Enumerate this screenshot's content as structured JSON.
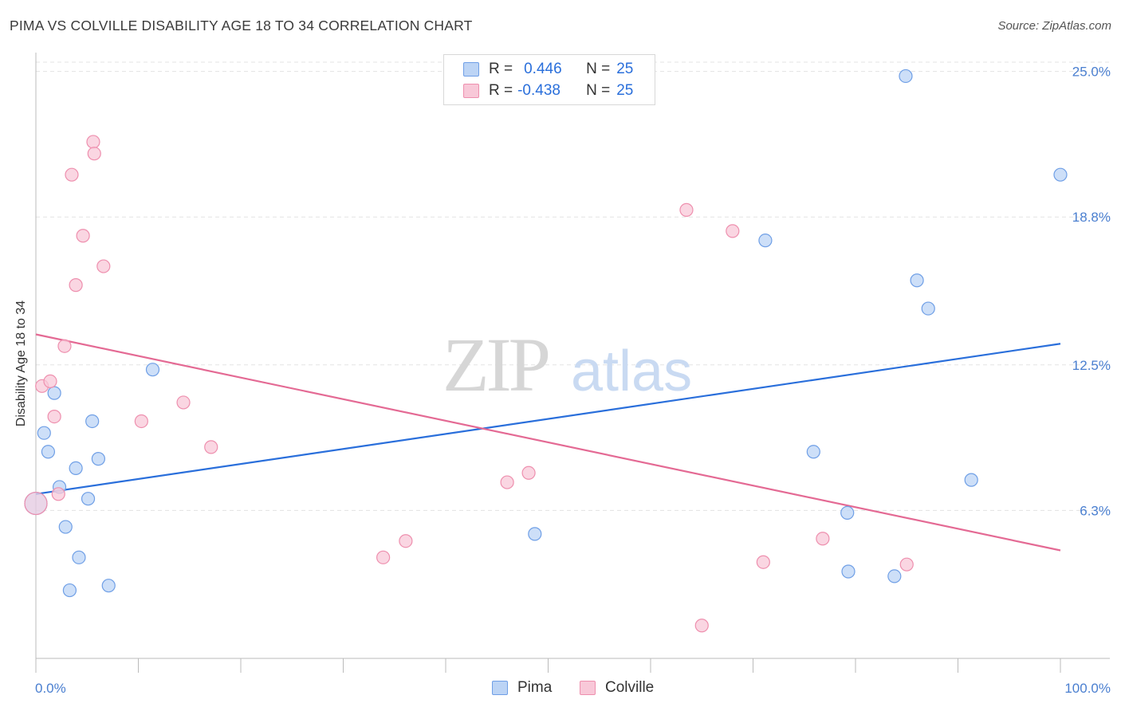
{
  "title": "PIMA VS COLVILLE DISABILITY AGE 18 TO 34 CORRELATION CHART",
  "source": "Source: ZipAtlas.com",
  "watermark": {
    "zip": "ZIP",
    "atlas": "atlas"
  },
  "legend": {
    "rows": [
      {
        "r_label": "R =",
        "r_value": "0.446",
        "n_label": "N =",
        "n_value": "25"
      },
      {
        "r_label": "R =",
        "r_value": "-0.438",
        "n_label": "N =",
        "n_value": "25"
      }
    ]
  },
  "bottom_legend": {
    "pima": "Pima",
    "colville": "Colville"
  },
  "chart_data": {
    "type": "scatter",
    "title": "PIMA VS COLVILLE DISABILITY AGE 18 TO 34 CORRELATION CHART",
    "xlabel": "",
    "ylabel": "Disability Age 18 to 34",
    "xlim": [
      0,
      100
    ],
    "ylim": [
      0,
      25.8
    ],
    "x_tick_labels": [
      "0.0%",
      "100.0%"
    ],
    "y_ticks": [
      6.3,
      12.5,
      18.8,
      25.0
    ],
    "y_tick_labels": [
      "6.3%",
      "12.5%",
      "18.8%",
      "25.0%"
    ],
    "grid": true,
    "legend_position": "top-center",
    "colors": {
      "pima": "#6f9fe6",
      "pima_fill": "#bcd4f5",
      "pima_line": "#2a6fdb",
      "colville": "#ee8fae",
      "colville_fill": "#f8c8d8",
      "colville_line": "#e46a94"
    },
    "series": [
      {
        "name": "Pima",
        "r": 0.446,
        "n": 25,
        "trend": {
          "x": [
            0,
            100
          ],
          "y": [
            7.0,
            13.4
          ]
        },
        "points": [
          {
            "x": 0.0,
            "y": 6.6,
            "large": true
          },
          {
            "x": 0.8,
            "y": 9.6
          },
          {
            "x": 1.2,
            "y": 8.8
          },
          {
            "x": 1.8,
            "y": 11.3
          },
          {
            "x": 2.3,
            "y": 7.3
          },
          {
            "x": 2.9,
            "y": 5.6
          },
          {
            "x": 3.3,
            "y": 2.9
          },
          {
            "x": 3.9,
            "y": 8.1
          },
          {
            "x": 4.2,
            "y": 4.3
          },
          {
            "x": 5.1,
            "y": 6.8
          },
          {
            "x": 5.5,
            "y": 10.1
          },
          {
            "x": 6.1,
            "y": 8.5
          },
          {
            "x": 7.1,
            "y": 3.1
          },
          {
            "x": 11.4,
            "y": 12.3
          },
          {
            "x": 48.7,
            "y": 5.3
          },
          {
            "x": 71.2,
            "y": 17.8
          },
          {
            "x": 75.9,
            "y": 8.8
          },
          {
            "x": 79.2,
            "y": 6.2
          },
          {
            "x": 79.3,
            "y": 3.7
          },
          {
            "x": 83.8,
            "y": 3.5
          },
          {
            "x": 84.9,
            "y": 24.8
          },
          {
            "x": 86.0,
            "y": 16.1
          },
          {
            "x": 87.1,
            "y": 14.9
          },
          {
            "x": 91.3,
            "y": 7.6
          },
          {
            "x": 100.0,
            "y": 20.6
          }
        ]
      },
      {
        "name": "Colville",
        "r": -0.438,
        "n": 25,
        "trend": {
          "x": [
            0,
            100
          ],
          "y": [
            13.8,
            4.6
          ]
        },
        "points": [
          {
            "x": 0.0,
            "y": 6.6,
            "large": true
          },
          {
            "x": 0.6,
            "y": 11.6
          },
          {
            "x": 1.4,
            "y": 11.8
          },
          {
            "x": 1.8,
            "y": 10.3
          },
          {
            "x": 2.2,
            "y": 7.0
          },
          {
            "x": 2.8,
            "y": 13.3
          },
          {
            "x": 3.5,
            "y": 20.6
          },
          {
            "x": 3.9,
            "y": 15.9
          },
          {
            "x": 4.6,
            "y": 18.0
          },
          {
            "x": 5.6,
            "y": 22.0
          },
          {
            "x": 5.7,
            "y": 21.5
          },
          {
            "x": 6.6,
            "y": 16.7
          },
          {
            "x": 10.3,
            "y": 10.1
          },
          {
            "x": 14.4,
            "y": 10.9
          },
          {
            "x": 17.1,
            "y": 9.0
          },
          {
            "x": 33.9,
            "y": 4.3
          },
          {
            "x": 36.1,
            "y": 5.0
          },
          {
            "x": 46.0,
            "y": 7.5
          },
          {
            "x": 48.1,
            "y": 7.9
          },
          {
            "x": 63.5,
            "y": 19.1
          },
          {
            "x": 65.0,
            "y": 1.4
          },
          {
            "x": 68.0,
            "y": 18.2
          },
          {
            "x": 71.0,
            "y": 4.1
          },
          {
            "x": 76.8,
            "y": 5.1
          },
          {
            "x": 85.0,
            "y": 4.0
          }
        ]
      }
    ]
  }
}
